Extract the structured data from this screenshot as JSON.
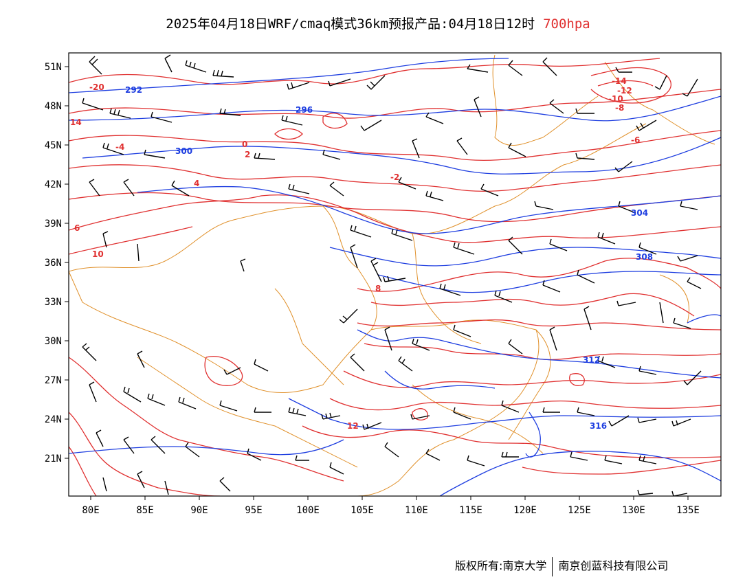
{
  "title": {
    "main": "2025年04月18日WRF/cmaq模式36km预报产品:04月18日12时",
    "level": "700hpa"
  },
  "axes": {
    "lat_labels": [
      "51N",
      "48N",
      "45N",
      "42N",
      "39N",
      "36N",
      "33N",
      "30N",
      "27N",
      "24N",
      "21N"
    ],
    "lon_labels": [
      "80E",
      "85E",
      "90E",
      "95E",
      "100E",
      "105E",
      "110E",
      "115E",
      "120E",
      "125E",
      "130E",
      "135E"
    ]
  },
  "temperature_labels": [
    "-20",
    "-14",
    "-12",
    "-10",
    "-8",
    "-6",
    "-4",
    "-2",
    "0",
    "2",
    "4",
    "6",
    "8",
    "10",
    "12",
    "14"
  ],
  "height_labels": [
    "292",
    "296",
    "300",
    "304",
    "308",
    "312",
    "316"
  ],
  "colors": {
    "temperature_contour": "#e03030",
    "height_contour": "#1e3ee0",
    "boundaries": "#e0902a",
    "wind_barbs": "#000000",
    "title_level": "#e03030"
  },
  "footer": {
    "copyright_left": "版权所有:南京大学",
    "copyright_right": "南京创蓝科技有限公司"
  }
}
